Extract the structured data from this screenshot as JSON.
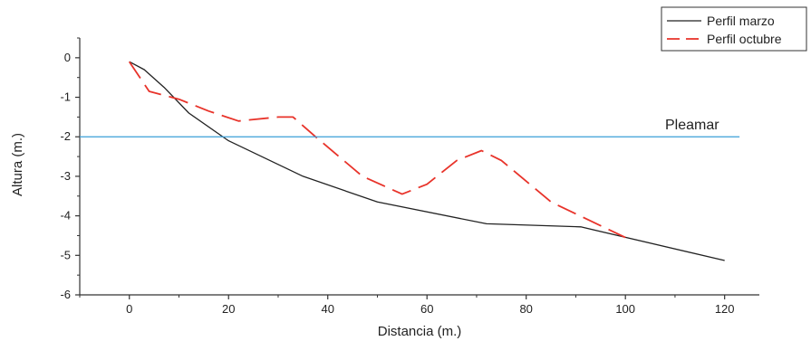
{
  "chart_data": {
    "type": "line",
    "title": "",
    "xlabel": "Distancia (m.)",
    "ylabel": "Altura (m.)",
    "xlim": [
      -10,
      127
    ],
    "ylim": [
      -6,
      0.5
    ],
    "xticks": [
      0,
      20,
      40,
      60,
      80,
      100,
      120
    ],
    "yticks": [
      0,
      -1,
      -2,
      -3,
      -4,
      -5,
      -6
    ],
    "grid": false,
    "legend": {
      "placement": "top-right"
    },
    "series": [
      {
        "name": "Perfil marzo",
        "color": "#222222",
        "style": "solid",
        "points": [
          [
            0,
            -0.1
          ],
          [
            3,
            -0.3
          ],
          [
            7,
            -0.75
          ],
          [
            12,
            -1.4
          ],
          [
            20,
            -2.1
          ],
          [
            35,
            -3.0
          ],
          [
            50,
            -3.65
          ],
          [
            72,
            -4.2
          ],
          [
            91,
            -4.28
          ],
          [
            120,
            -5.13
          ]
        ]
      },
      {
        "name": "Perfil octubre",
        "color": "#e8332a",
        "style": "dashed",
        "points": [
          [
            0,
            -0.1
          ],
          [
            4,
            -0.85
          ],
          [
            10,
            -1.05
          ],
          [
            16,
            -1.35
          ],
          [
            22,
            -1.6
          ],
          [
            30,
            -1.5
          ],
          [
            33,
            -1.5
          ],
          [
            38,
            -2.05
          ],
          [
            47,
            -3.0
          ],
          [
            55,
            -3.45
          ],
          [
            60,
            -3.2
          ],
          [
            66,
            -2.6
          ],
          [
            71,
            -2.35
          ],
          [
            75,
            -2.6
          ],
          [
            85,
            -3.65
          ],
          [
            100,
            -4.55
          ]
        ]
      }
    ],
    "reference_lines": [
      {
        "y": -2.0,
        "x_range": [
          -10,
          123
        ],
        "color": "#3a9fd8",
        "label": "Pleamar",
        "label_x": 108
      }
    ]
  }
}
